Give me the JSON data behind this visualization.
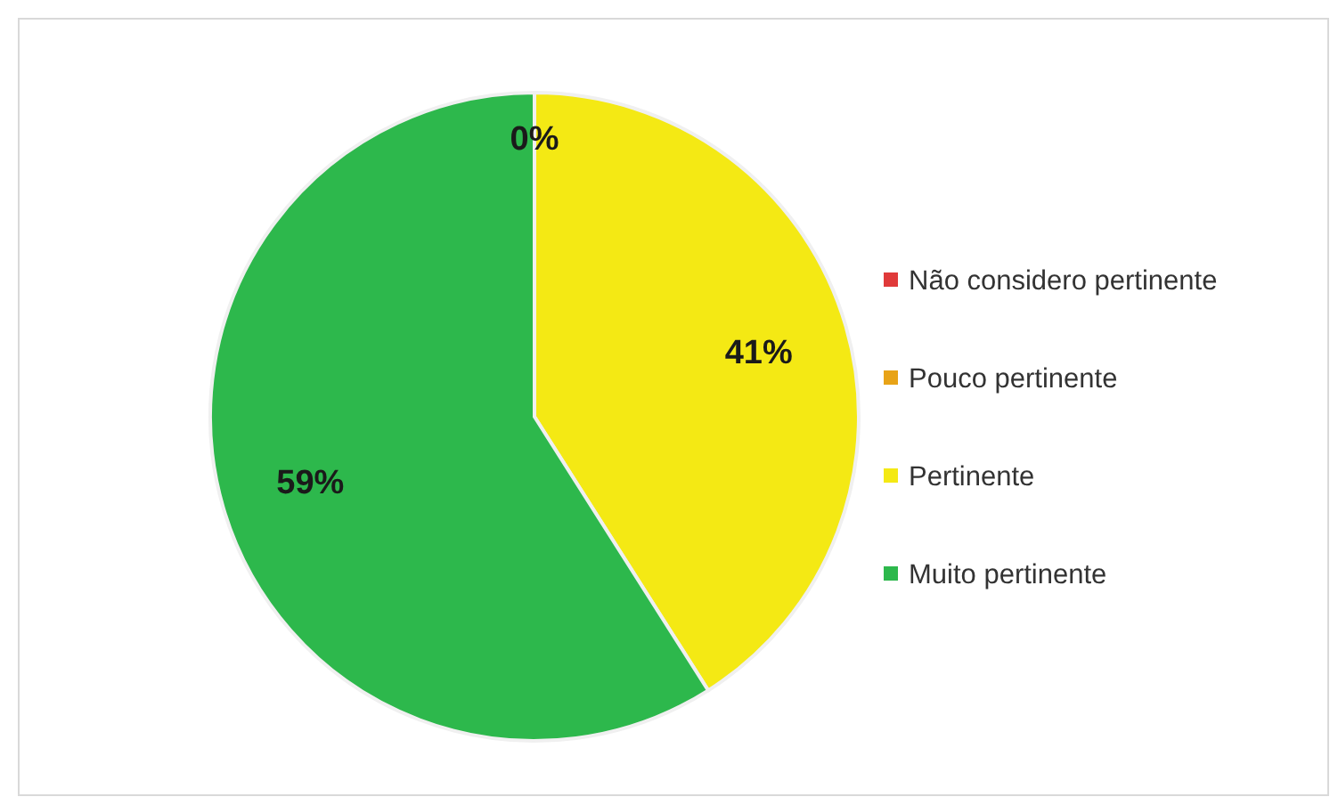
{
  "chart_data": {
    "type": "pie",
    "categories": [
      "Não considero pertinente",
      "Pouco pertinente",
      "Pertinente",
      "Muito pertinente"
    ],
    "values": [
      0,
      0,
      41,
      59
    ],
    "colors": [
      "#e03a3a",
      "#e8a317",
      "#f4e914",
      "#2db84c"
    ],
    "value_labels": [
      null,
      "0%",
      "41%",
      "59%"
    ],
    "legend": "right"
  }
}
